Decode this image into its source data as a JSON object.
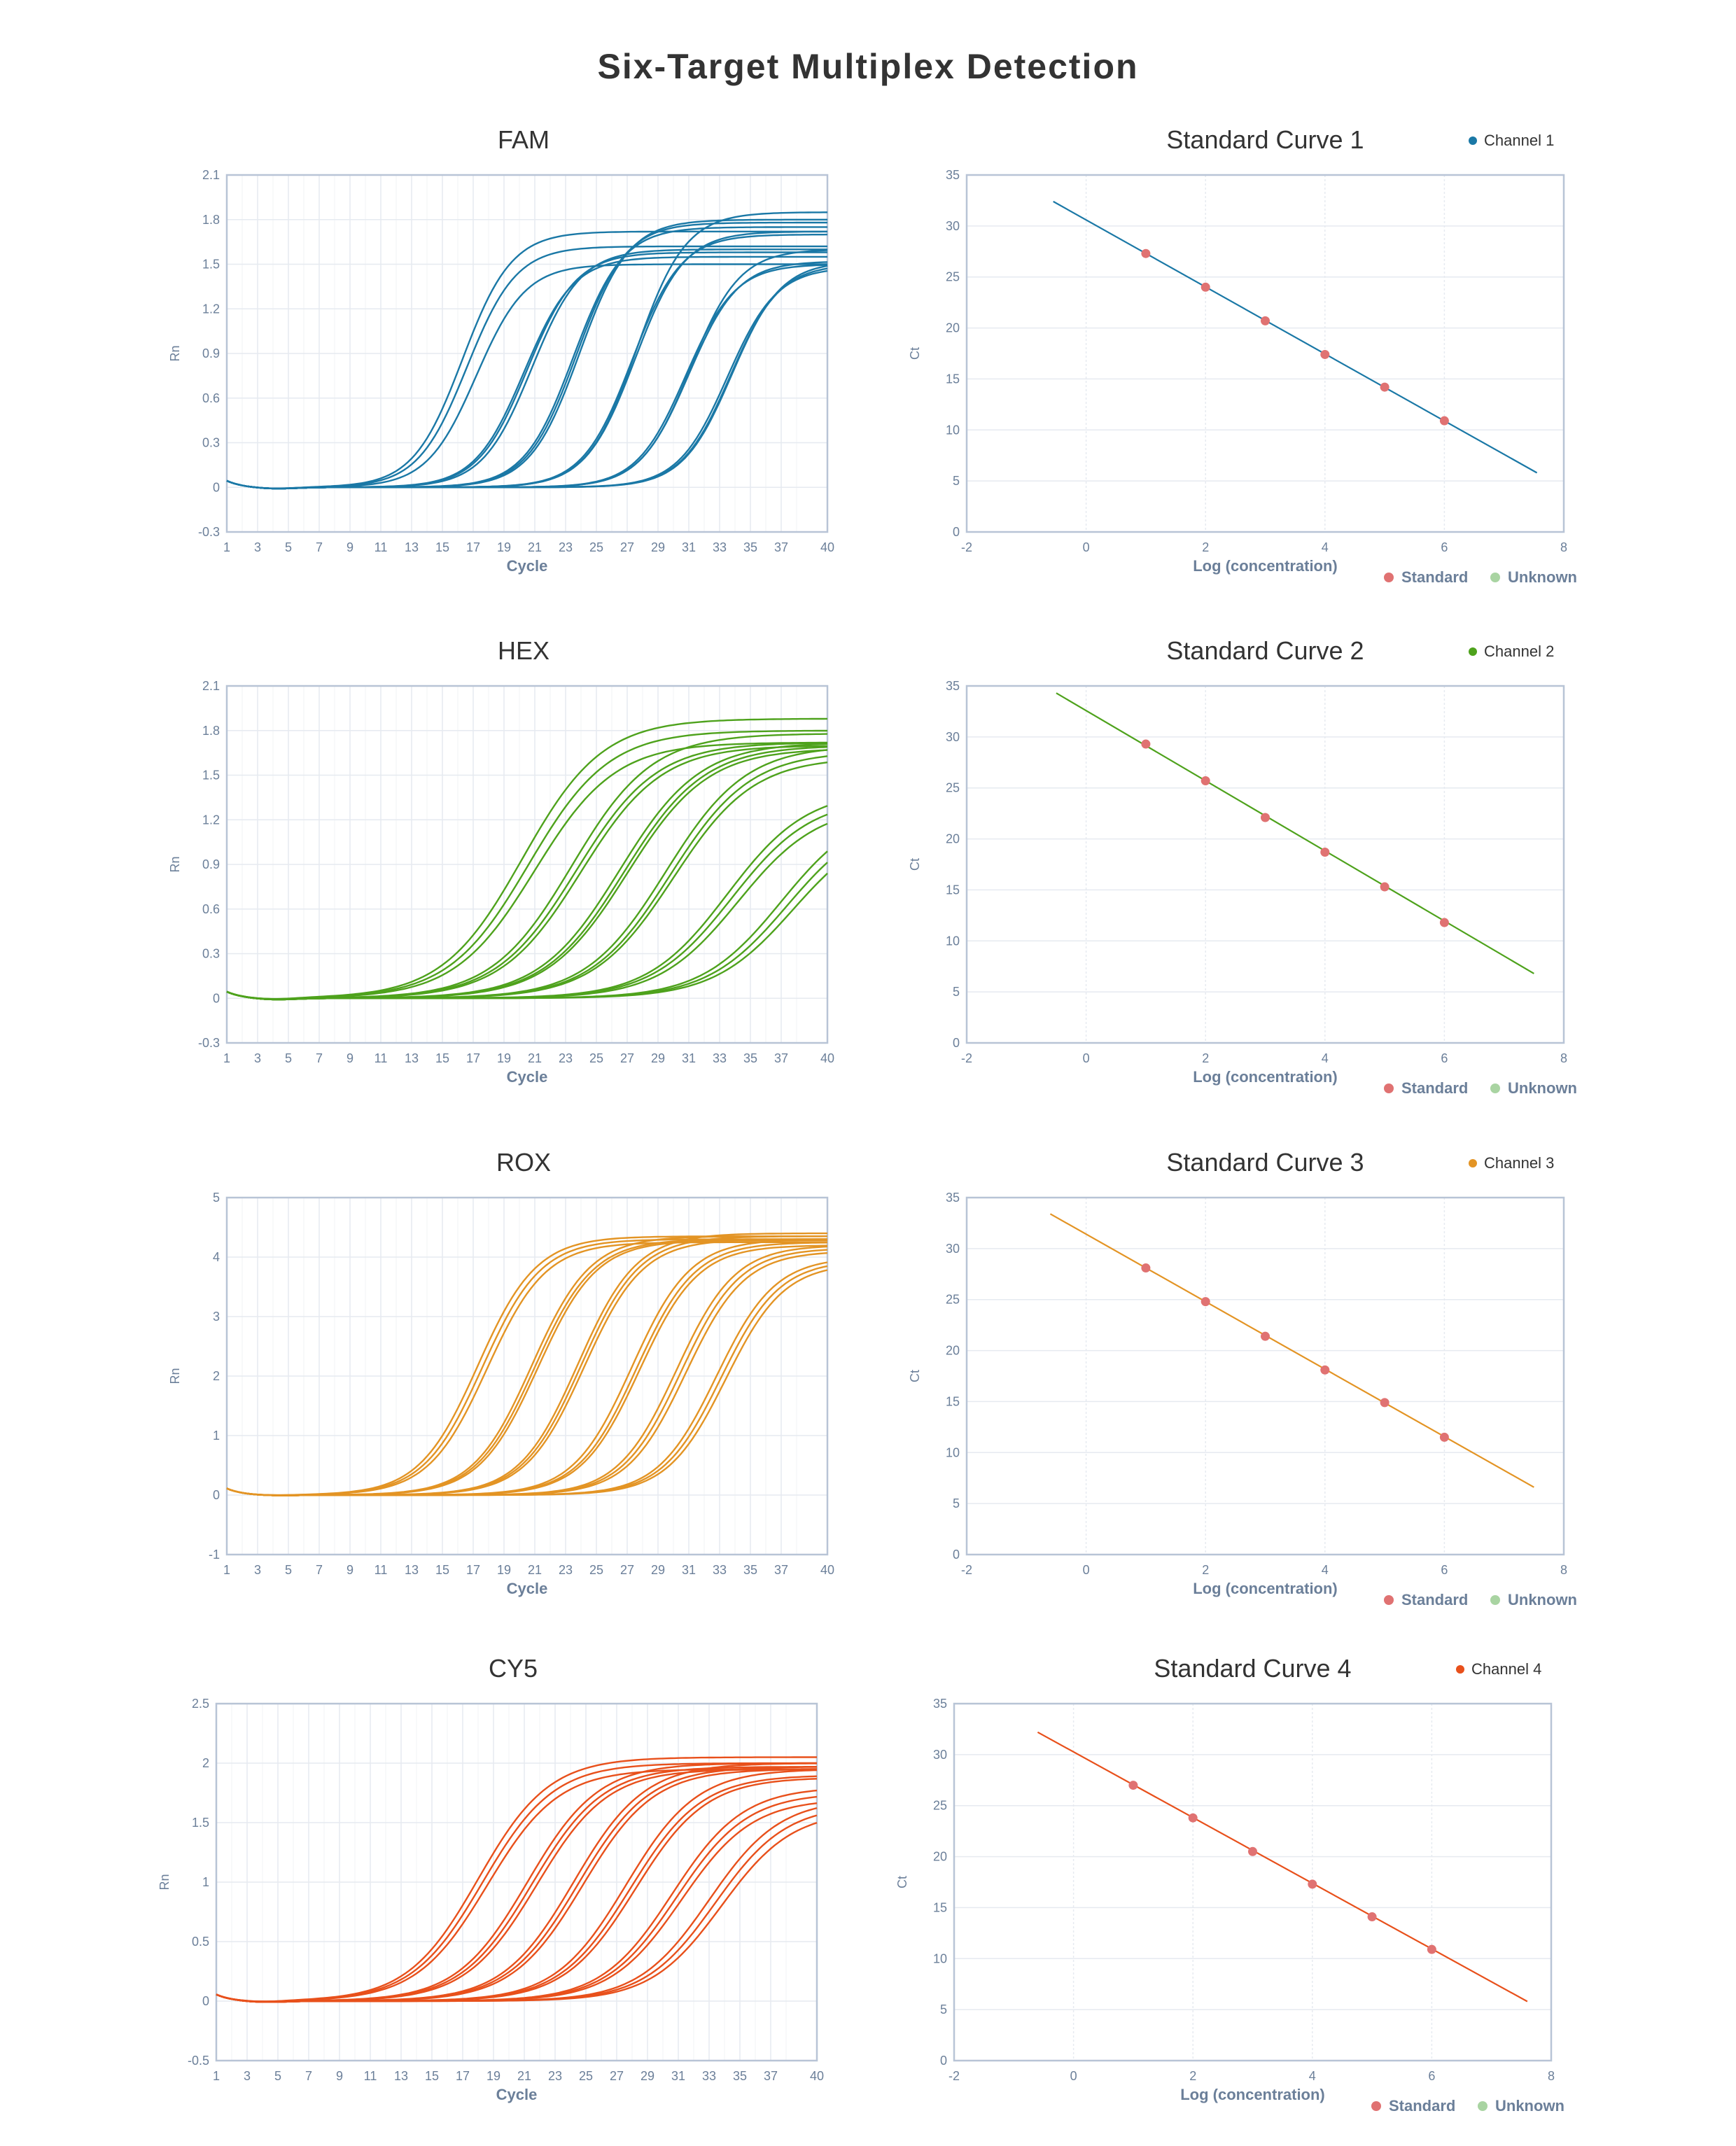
{
  "title": "Six-Target Multiplex Detection",
  "chart_data": [
    {
      "type": "line",
      "title": "FAM",
      "xlabel": "Cycle",
      "ylabel": "Rn",
      "color": "#1a78a6",
      "xlim": [
        1,
        40
      ],
      "xticks": [
        1,
        3,
        5,
        7,
        9,
        11,
        13,
        15,
        17,
        19,
        21,
        23,
        25,
        27,
        29,
        31,
        33,
        35,
        37,
        40
      ],
      "ylim": [
        -0.3,
        2.1
      ],
      "yticks": [
        -0.3,
        0,
        0.3,
        0.6,
        0.9,
        1.2,
        1.5,
        1.8,
        2.1
      ],
      "slope": 1.6,
      "curves": [
        [
          16.3,
          1.72
        ],
        [
          16.6,
          1.62
        ],
        [
          17.2,
          1.5
        ],
        [
          20.3,
          1.55
        ],
        [
          20.5,
          1.58
        ],
        [
          20.8,
          1.6
        ],
        [
          23.5,
          1.75
        ],
        [
          23.7,
          1.78
        ],
        [
          23.9,
          1.8
        ],
        [
          27.3,
          1.7
        ],
        [
          27.5,
          1.72
        ],
        [
          27.6,
          1.85
        ],
        [
          30.8,
          1.5
        ],
        [
          31.0,
          1.52
        ],
        [
          31.1,
          1.6
        ],
        [
          33.5,
          1.48
        ],
        [
          33.7,
          1.5
        ],
        [
          33.8,
          1.52
        ]
      ]
    },
    {
      "type": "line",
      "title": "HEX",
      "xlabel": "Cycle",
      "ylabel": "Rn",
      "color": "#4ea21c",
      "xlim": [
        1,
        40
      ],
      "xticks": [
        1,
        3,
        5,
        7,
        9,
        11,
        13,
        15,
        17,
        19,
        21,
        23,
        25,
        27,
        29,
        31,
        33,
        35,
        37,
        40
      ],
      "ylim": [
        -0.3,
        2.1
      ],
      "yticks": [
        -0.3,
        0,
        0.3,
        0.6,
        0.9,
        1.2,
        1.5,
        1.8,
        2.1
      ],
      "slope": 2.6,
      "curves": [
        [
          20.2,
          1.88
        ],
        [
          20.6,
          1.8
        ],
        [
          21.0,
          1.72
        ],
        [
          23.4,
          1.78
        ],
        [
          23.7,
          1.72
        ],
        [
          24.0,
          1.7
        ],
        [
          26.5,
          1.72
        ],
        [
          26.8,
          1.7
        ],
        [
          27.0,
          1.68
        ],
        [
          29.5,
          1.7
        ],
        [
          29.8,
          1.66
        ],
        [
          30.0,
          1.62
        ],
        [
          33.5,
          1.4
        ],
        [
          33.8,
          1.35
        ],
        [
          34.2,
          1.3
        ],
        [
          37.0,
          1.3
        ],
        [
          37.4,
          1.25
        ],
        [
          37.8,
          1.2
        ]
      ]
    },
    {
      "type": "line",
      "title": "ROX",
      "xlabel": "Cycle",
      "ylabel": "Rn",
      "color": "#e39424",
      "xlim": [
        1,
        40
      ],
      "xticks": [
        1,
        3,
        5,
        7,
        9,
        11,
        13,
        15,
        17,
        19,
        21,
        23,
        25,
        27,
        29,
        31,
        33,
        35,
        37,
        40
      ],
      "ylim": [
        -1,
        5
      ],
      "yticks": [
        -1,
        0,
        1,
        2,
        3,
        4,
        5
      ],
      "slope": 1.9,
      "curves": [
        [
          17.3,
          4.35
        ],
        [
          17.6,
          4.3
        ],
        [
          17.9,
          4.25
        ],
        [
          20.8,
          4.35
        ],
        [
          21.0,
          4.3
        ],
        [
          21.2,
          4.28
        ],
        [
          23.8,
          4.4
        ],
        [
          24.0,
          4.35
        ],
        [
          24.2,
          4.3
        ],
        [
          27.3,
          4.3
        ],
        [
          27.6,
          4.25
        ],
        [
          27.8,
          4.2
        ],
        [
          30.2,
          4.2
        ],
        [
          30.5,
          4.15
        ],
        [
          30.8,
          4.1
        ],
        [
          32.8,
          4.0
        ],
        [
          33.1,
          3.95
        ],
        [
          33.4,
          3.9
        ]
      ]
    },
    {
      "type": "line",
      "title": "CY5",
      "xlabel": "Cycle",
      "ylabel": "Rn",
      "color": "#e8501b",
      "xlim": [
        1,
        40
      ],
      "xticks": [
        1,
        3,
        5,
        7,
        9,
        11,
        13,
        15,
        17,
        19,
        21,
        23,
        25,
        27,
        29,
        31,
        33,
        35,
        37,
        40
      ],
      "ylim": [
        -0.5,
        2.5
      ],
      "yticks": [
        -0.5,
        0,
        0.5,
        1,
        1.5,
        2,
        2.5
      ],
      "slope": 2.3,
      "curves": [
        [
          18.0,
          2.05
        ],
        [
          18.3,
          2.0
        ],
        [
          18.6,
          1.95
        ],
        [
          21.2,
          2.0
        ],
        [
          21.5,
          1.97
        ],
        [
          21.8,
          1.95
        ],
        [
          24.2,
          2.0
        ],
        [
          24.5,
          1.97
        ],
        [
          24.8,
          1.95
        ],
        [
          27.6,
          1.95
        ],
        [
          27.9,
          1.9
        ],
        [
          28.2,
          1.88
        ],
        [
          30.6,
          1.8
        ],
        [
          30.9,
          1.75
        ],
        [
          31.2,
          1.7
        ],
        [
          33.0,
          1.7
        ],
        [
          33.4,
          1.65
        ],
        [
          33.8,
          1.6
        ]
      ]
    },
    {
      "type": "scatter",
      "title": "Standard Curve 1",
      "channel": "Channel 1",
      "xlabel": "Log (concentration)",
      "ylabel": "Ct",
      "color": "#1a78a6",
      "xlim": [
        -2,
        8
      ],
      "xticks": [
        -2,
        0,
        2,
        4,
        6,
        8
      ],
      "ylim": [
        0,
        35
      ],
      "yticks": [
        0,
        5,
        10,
        15,
        20,
        25,
        30,
        35
      ],
      "points": [
        [
          1,
          27.3
        ],
        [
          2,
          24.0
        ],
        [
          3,
          20.7
        ],
        [
          4,
          17.4
        ],
        [
          5,
          14.2
        ],
        [
          6,
          10.9
        ]
      ],
      "fit": [
        [
          -0.55,
          32.4
        ],
        [
          7.55,
          5.8
        ]
      ],
      "legend": [
        "Standard",
        "Unknown"
      ]
    },
    {
      "type": "scatter",
      "title": "Standard Curve 2",
      "channel": "Channel 2",
      "xlabel": "Log (concentration)",
      "ylabel": "Ct",
      "color": "#4ea21c",
      "xlim": [
        -2,
        8
      ],
      "xticks": [
        -2,
        0,
        2,
        4,
        6,
        8
      ],
      "ylim": [
        0,
        35
      ],
      "yticks": [
        0,
        5,
        10,
        15,
        20,
        25,
        30,
        35
      ],
      "points": [
        [
          1,
          29.3
        ],
        [
          2,
          25.7
        ],
        [
          3,
          22.1
        ],
        [
          4,
          18.7
        ],
        [
          5,
          15.3
        ],
        [
          6,
          11.8
        ]
      ],
      "fit": [
        [
          -0.5,
          34.3
        ],
        [
          7.5,
          6.8
        ]
      ],
      "legend": [
        "Standard",
        "Unknown"
      ]
    },
    {
      "type": "scatter",
      "title": "Standard Curve 3",
      "channel": "Channel 3",
      "xlabel": "Log (concentration)",
      "ylabel": "Ct",
      "color": "#e39424",
      "xlim": [
        -2,
        8
      ],
      "xticks": [
        -2,
        0,
        2,
        4,
        6,
        8
      ],
      "ylim": [
        0,
        35
      ],
      "yticks": [
        0,
        5,
        10,
        15,
        20,
        25,
        30,
        35
      ],
      "points": [
        [
          1,
          28.1
        ],
        [
          2,
          24.8
        ],
        [
          3,
          21.4
        ],
        [
          4,
          18.1
        ],
        [
          5,
          14.9
        ],
        [
          6,
          11.5
        ]
      ],
      "fit": [
        [
          -0.6,
          33.4
        ],
        [
          7.5,
          6.6
        ]
      ],
      "legend": [
        "Standard",
        "Unknown"
      ]
    },
    {
      "type": "scatter",
      "title": "Standard Curve 4",
      "channel": "Channel 4",
      "xlabel": "Log (concentration)",
      "ylabel": "Ct",
      "color": "#e8501b",
      "xlim": [
        -2,
        8
      ],
      "xticks": [
        -2,
        0,
        2,
        4,
        6,
        8
      ],
      "ylim": [
        0,
        35
      ],
      "yticks": [
        0,
        5,
        10,
        15,
        20,
        25,
        30,
        35
      ],
      "points": [
        [
          1,
          27.0
        ],
        [
          2,
          23.8
        ],
        [
          3,
          20.5
        ],
        [
          4,
          17.3
        ],
        [
          5,
          14.1
        ],
        [
          6,
          10.9
        ]
      ],
      "fit": [
        [
          -0.6,
          32.2
        ],
        [
          7.6,
          5.8
        ]
      ],
      "legend": [
        "Standard",
        "Unknown"
      ]
    }
  ],
  "colors": {
    "standard": "#e07272",
    "unknown": "#a9d4a2",
    "axis": "#b8c4d6",
    "grid": "#e6eaf0"
  }
}
